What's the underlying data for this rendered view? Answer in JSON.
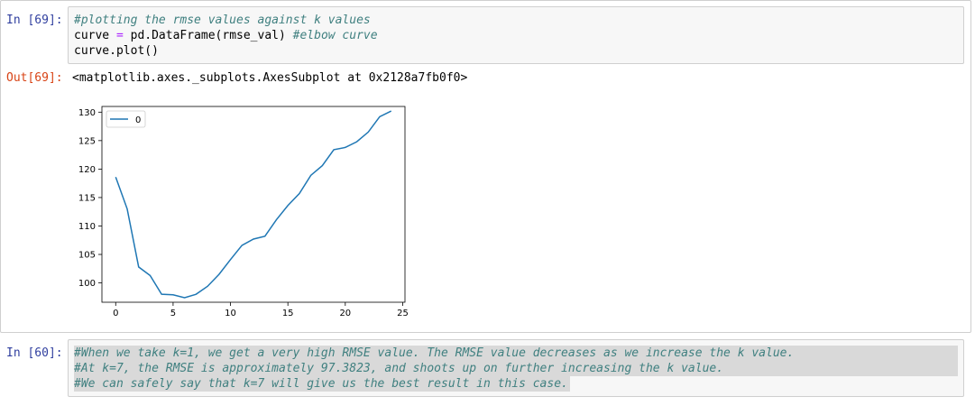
{
  "cells": {
    "code_cell": {
      "prompt": "In [69]:",
      "line1_comment": "#plotting the rmse values against k values",
      "line2_a": "curve ",
      "line2_op": "=",
      "line2_b": " pd.DataFrame(rmse_val) ",
      "line2_comment": "#elbow curve",
      "line3": "curve.plot()"
    },
    "output": {
      "prompt": "Out[69]:",
      "text": "<matplotlib.axes._subplots.AxesSubplot at 0x2128a7fb0f0>"
    },
    "comment_cell": {
      "prompt": "In [60]:",
      "lines": [
        "#When we take k=1, we get a very high RMSE value. The RMSE value decreases as we increase the k value.",
        "#At k=7, the RMSE is approximately 97.3823, and shoots up on further increasing the k value.",
        "#We can safely say that k=7 will give us the best result in this case."
      ]
    }
  },
  "chart_data": {
    "type": "line",
    "x": [
      0,
      1,
      2,
      3,
      4,
      5,
      6,
      7,
      8,
      9,
      10,
      11,
      12,
      13,
      14,
      15,
      16,
      17,
      18,
      19,
      20,
      21,
      22,
      23,
      24
    ],
    "series": [
      {
        "name": "0",
        "values": [
          118.6,
          113.0,
          102.8,
          101.3,
          98.0,
          97.9,
          97.4,
          98.0,
          99.4,
          101.5,
          104.1,
          106.6,
          107.7,
          108.2,
          111.1,
          113.6,
          115.7,
          118.9,
          120.6,
          123.4,
          123.8,
          124.8,
          126.5,
          129.2,
          130.2
        ]
      }
    ],
    "xticks": [
      0,
      5,
      10,
      15,
      20,
      25
    ],
    "yticks": [
      100,
      105,
      110,
      115,
      120,
      125,
      130
    ],
    "xlim": [
      -1.2,
      25.2
    ],
    "ylim": [
      96.6,
      131.0
    ],
    "legend": "upper left",
    "line_color": "#1f77b4",
    "grid": false
  }
}
